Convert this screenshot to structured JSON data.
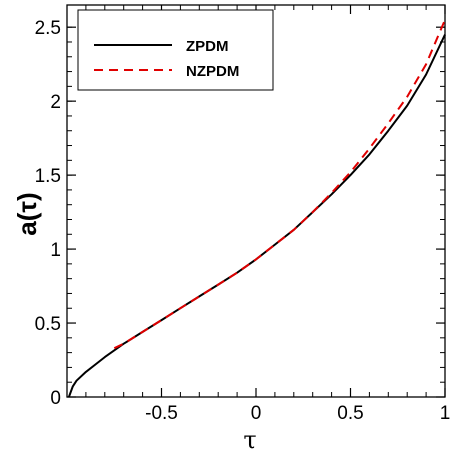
{
  "chart_data": {
    "type": "line",
    "xlabel": "τ",
    "ylabel": "a(τ)",
    "xlim": [
      -1.0,
      1.0
    ],
    "ylim": [
      0,
      2.65
    ],
    "xticks": [
      -0.5,
      0,
      0.5,
      1
    ],
    "xtick_labels": [
      "-0.5",
      "0",
      "0.5",
      "1"
    ],
    "yticks": [
      0,
      0.5,
      1,
      1.5,
      2,
      2.5
    ],
    "ytick_labels": [
      "0",
      "0.5",
      "1",
      "1.5",
      "2",
      "2.5"
    ],
    "grid": false,
    "legend_position": "top-left",
    "series": [
      {
        "name": "ZPDM",
        "color": "#000000",
        "style": "solid",
        "x": [
          -0.99,
          -0.97,
          -0.95,
          -0.9,
          -0.85,
          -0.8,
          -0.7,
          -0.6,
          -0.5,
          -0.4,
          -0.3,
          -0.2,
          -0.1,
          0.0,
          0.1,
          0.2,
          0.3,
          0.4,
          0.5,
          0.6,
          0.7,
          0.8,
          0.9,
          1.0
        ],
        "values": [
          0.0,
          0.07,
          0.11,
          0.17,
          0.22,
          0.27,
          0.36,
          0.44,
          0.52,
          0.6,
          0.68,
          0.76,
          0.84,
          0.93,
          1.03,
          1.13,
          1.25,
          1.37,
          1.5,
          1.64,
          1.8,
          1.97,
          2.18,
          2.45
        ]
      },
      {
        "name": "NZPDM",
        "color": "#e00000",
        "style": "dashed",
        "x": [
          -0.75,
          -0.7,
          -0.6,
          -0.5,
          -0.4,
          -0.3,
          -0.2,
          -0.1,
          0.0,
          0.1,
          0.2,
          0.3,
          0.4,
          0.5,
          0.6,
          0.7,
          0.8,
          0.9,
          1.0
        ],
        "values": [
          0.33,
          0.36,
          0.44,
          0.52,
          0.6,
          0.68,
          0.76,
          0.84,
          0.93,
          1.03,
          1.13,
          1.25,
          1.38,
          1.52,
          1.68,
          1.85,
          2.03,
          2.25,
          2.55
        ]
      }
    ]
  }
}
